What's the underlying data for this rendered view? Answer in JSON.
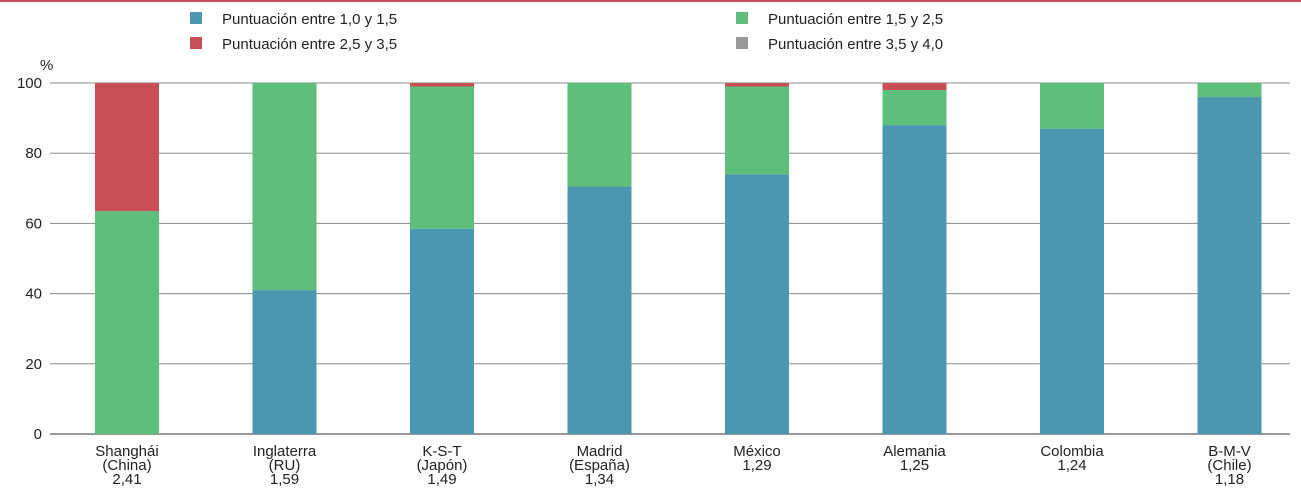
{
  "chart_data": {
    "type": "bar",
    "stacked": true,
    "ylabel": "%",
    "ylim": [
      0,
      100
    ],
    "yticks": [
      0,
      20,
      40,
      60,
      80,
      100
    ],
    "grid": true,
    "legend_position": "top",
    "categories": [
      [
        "Shanghái",
        "(China)",
        "2,41"
      ],
      [
        "Inglaterra",
        "(RU)",
        "1,59"
      ],
      [
        "K-S-T",
        "(Japón)",
        "1,49"
      ],
      [
        "Madrid",
        "(España)",
        "1,34"
      ],
      [
        "México",
        "1,29"
      ],
      [
        "Alemania",
        "1,25"
      ],
      [
        "Colombia",
        "1,24"
      ],
      [
        "B-M-V",
        "(Chile)",
        "1,18"
      ]
    ],
    "series": [
      {
        "name": "Puntuación entre 1,0 y 1,5",
        "color": "#4a98b0",
        "values": [
          0,
          41,
          58.5,
          70.5,
          74,
          88,
          87,
          96
        ]
      },
      {
        "name": "Puntuación entre 1,5 y 2,5",
        "color": "#5dbf7a",
        "values": [
          63.5,
          59,
          40.5,
          29.5,
          25,
          10,
          13,
          4
        ]
      },
      {
        "name": "Puntuación entre 2,5 y 3,5",
        "color": "#c94f57",
        "values": [
          36.5,
          0,
          1,
          0,
          1,
          2,
          0,
          0
        ]
      },
      {
        "name": "Puntuación entre 3,5 y 4,0",
        "color": "#999999",
        "values": [
          0,
          0,
          0,
          0,
          0,
          0,
          0,
          0
        ]
      }
    ],
    "legend_order": [
      0,
      2,
      1,
      3
    ]
  }
}
